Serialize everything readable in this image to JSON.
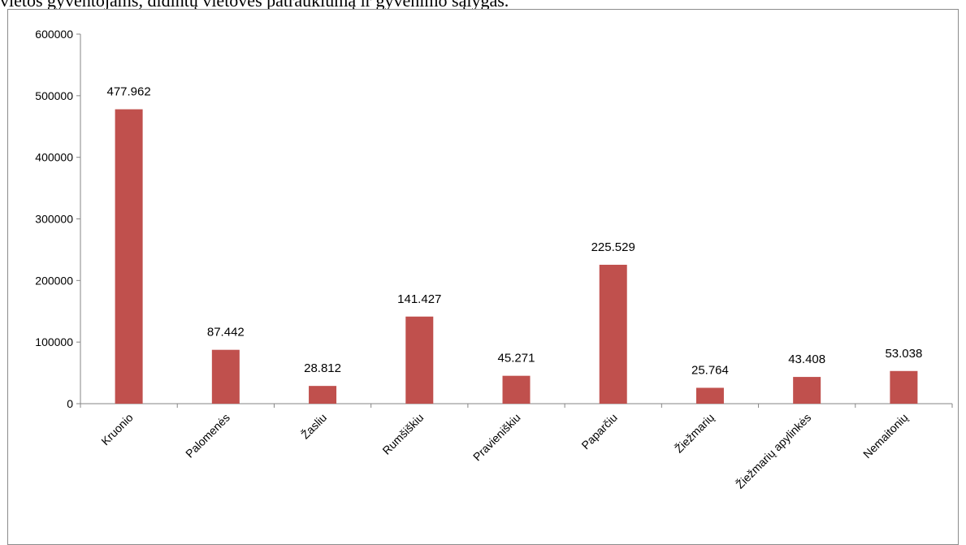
{
  "document": {
    "text_above_chart": "vietos gyventojams, didintų vietovės patrauklumą ir gyvenimo sąlygas."
  },
  "chart_data": {
    "type": "bar",
    "title": "",
    "xlabel": "",
    "ylabel": "",
    "categories": [
      "Kruonio",
      "Palomenės",
      "Žasliu",
      "Rumšiškiu",
      "Pravieniškiu",
      "Paparčiu",
      "Žiežmarių",
      "Žiežmarių apylinkės",
      "Nemaitonių"
    ],
    "values": [
      477962,
      87442,
      28812,
      141427,
      45271,
      225529,
      25764,
      43408,
      53038
    ],
    "data_labels": [
      "477.962",
      "87.442",
      "28.812",
      "141.427",
      "45.271",
      "225.529",
      "25.764",
      "43.408",
      "53.038"
    ],
    "ylim": [
      0,
      600000
    ],
    "yticks": [
      0,
      100000,
      200000,
      300000,
      400000,
      500000,
      600000
    ],
    "ytick_labels": [
      "0",
      "100000",
      "200000",
      "300000",
      "400000",
      "500000",
      "600000"
    ],
    "bar_color": "#c0504d",
    "grid": false,
    "legend": "none"
  }
}
